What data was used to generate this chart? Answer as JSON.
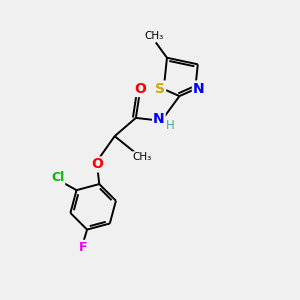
{
  "background_color": "#f0f0f0",
  "bond_color": "#000000",
  "atom_colors": {
    "O": "#ff0000",
    "N": "#0000ff",
    "S": "#ccaa00",
    "Cl": "#00bb00",
    "F": "#ee00ee",
    "H": "#44aaaa",
    "C": "#000000"
  },
  "font_size_label": 9,
  "fig_width": 3.0,
  "fig_height": 3.0
}
